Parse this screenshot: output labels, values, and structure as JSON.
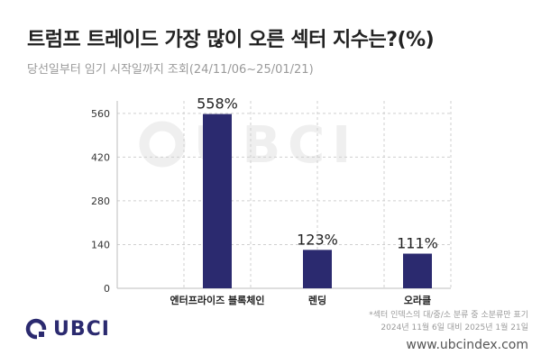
{
  "title": "트럼프 트레이드 가장 많이 오른 섹터 지수는?(%)",
  "subtitle": "당선일부터 임기 시작일까지 조회(24/11/06~25/01/21)",
  "watermark": "UBCI",
  "logo_text": "UBCI",
  "footnote_line1": "*섹터 인덱스의 대/중/소 분류 중 소분류만 표기",
  "footnote_line2": "2024년 11월 6일 대비 2025년 1월 21일",
  "site": "www.ubcindex.com",
  "colors": {
    "bar": "#2b2a6f",
    "title": "#222222",
    "grid": "#cfcfcf"
  },
  "chart_data": {
    "type": "bar",
    "categories": [
      "엔터프라이즈 블록체인",
      "렌딩",
      "오라클"
    ],
    "values": [
      558,
      123,
      111
    ],
    "data_labels": [
      "558%",
      "123%",
      "111%"
    ],
    "yticks": [
      0,
      140,
      280,
      420,
      560
    ],
    "ylim": [
      0,
      600
    ],
    "grid": true,
    "title": "",
    "xlabel": "",
    "ylabel": ""
  }
}
